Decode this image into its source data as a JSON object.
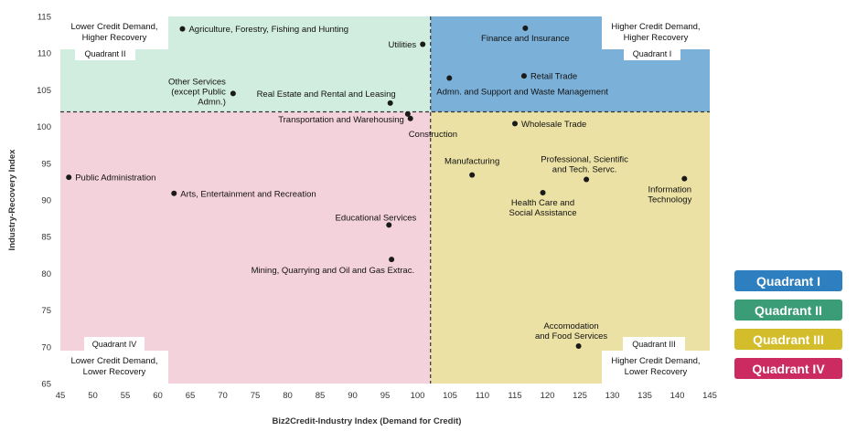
{
  "chart_data": {
    "type": "scatter",
    "xlabel": "Biz2Credit-Industry Index (Demand for Credit)",
    "ylabel": "Industry-Recovery Index",
    "xlim": [
      45,
      145
    ],
    "ylim": [
      65,
      115
    ],
    "xticks": [
      45,
      50,
      55,
      60,
      65,
      70,
      75,
      80,
      85,
      90,
      95,
      100,
      105,
      110,
      115,
      120,
      125,
      130,
      135,
      140,
      145
    ],
    "yticks": [
      65,
      70,
      75,
      80,
      85,
      90,
      95,
      100,
      105,
      110,
      115
    ],
    "divider_x": 102,
    "divider_y": 102,
    "points": [
      {
        "label": "Agriculture, Forestry, Fishing and Hunting",
        "x": 63.8,
        "y": 113.3
      },
      {
        "label": "Utilities",
        "x": 100.8,
        "y": 111.2
      },
      {
        "label": "Finance and Insurance",
        "x": 116.6,
        "y": 113.4
      },
      {
        "label": "Other Services\n(except Public\nAdmn.)",
        "x": 71.6,
        "y": 104.5
      },
      {
        "label": "Real Estate and Rental and Leasing",
        "x": 95.8,
        "y": 103.2
      },
      {
        "label": "Transportation and Warehousing",
        "x": 98.5,
        "y": 101.7
      },
      {
        "label": "Construction",
        "x": 98.9,
        "y": 101.1
      },
      {
        "label": "Admn. and Support and Waste Management",
        "x": 104.9,
        "y": 106.6
      },
      {
        "label": "Retail Trade",
        "x": 116.4,
        "y": 106.9
      },
      {
        "label": "Wholesale Trade",
        "x": 115.0,
        "y": 100.4
      },
      {
        "label": "Public Administration",
        "x": 46.3,
        "y": 93.1
      },
      {
        "label": "Arts, Entertainment and Recreation",
        "x": 62.5,
        "y": 90.9
      },
      {
        "label": "Educational Services",
        "x": 95.6,
        "y": 86.6
      },
      {
        "label": "Mining, Quarrying and Oil and Gas Extrac.",
        "x": 96.0,
        "y": 81.9
      },
      {
        "label": "Manufacturing",
        "x": 108.4,
        "y": 93.4
      },
      {
        "label": "Professional, Scientific\nand Tech. Servc.",
        "x": 126.0,
        "y": 92.8
      },
      {
        "label": "Health Care and\nSocial Assistance",
        "x": 119.3,
        "y": 91.0
      },
      {
        "label": "Information\nTechnology",
        "x": 141.1,
        "y": 92.9
      },
      {
        "label": "Accomodation\nand Food Services",
        "x": 124.8,
        "y": 70.1
      }
    ],
    "quadrants": [
      {
        "id": "I",
        "tag": "Quadrant I",
        "corner_text": "Higher Credit Demand,\nHigher Recovery",
        "color": "#7bb0d8"
      },
      {
        "id": "II",
        "tag": "Quadrant II",
        "corner_text": "Lower Credit Demand,\nHigher Recovery",
        "color": "#d1eddf"
      },
      {
        "id": "III",
        "tag": "Quadrant III",
        "corner_text": "Higher Credit Demand,\nLower Recovery",
        "color": "#ebe1a4"
      },
      {
        "id": "IV",
        "tag": "Quadrant IV",
        "corner_text": "Lower Credit Demand,\nLower Recovery",
        "color": "#f4d2dc"
      }
    ],
    "legend": [
      {
        "label": "Quadrant I",
        "color": "#2e7fc0"
      },
      {
        "label": "Quadrant II",
        "color": "#3a9d78"
      },
      {
        "label": "Quadrant III",
        "color": "#d4bd2a"
      },
      {
        "label": "Quadrant IV",
        "color": "#cc2b62"
      }
    ]
  }
}
